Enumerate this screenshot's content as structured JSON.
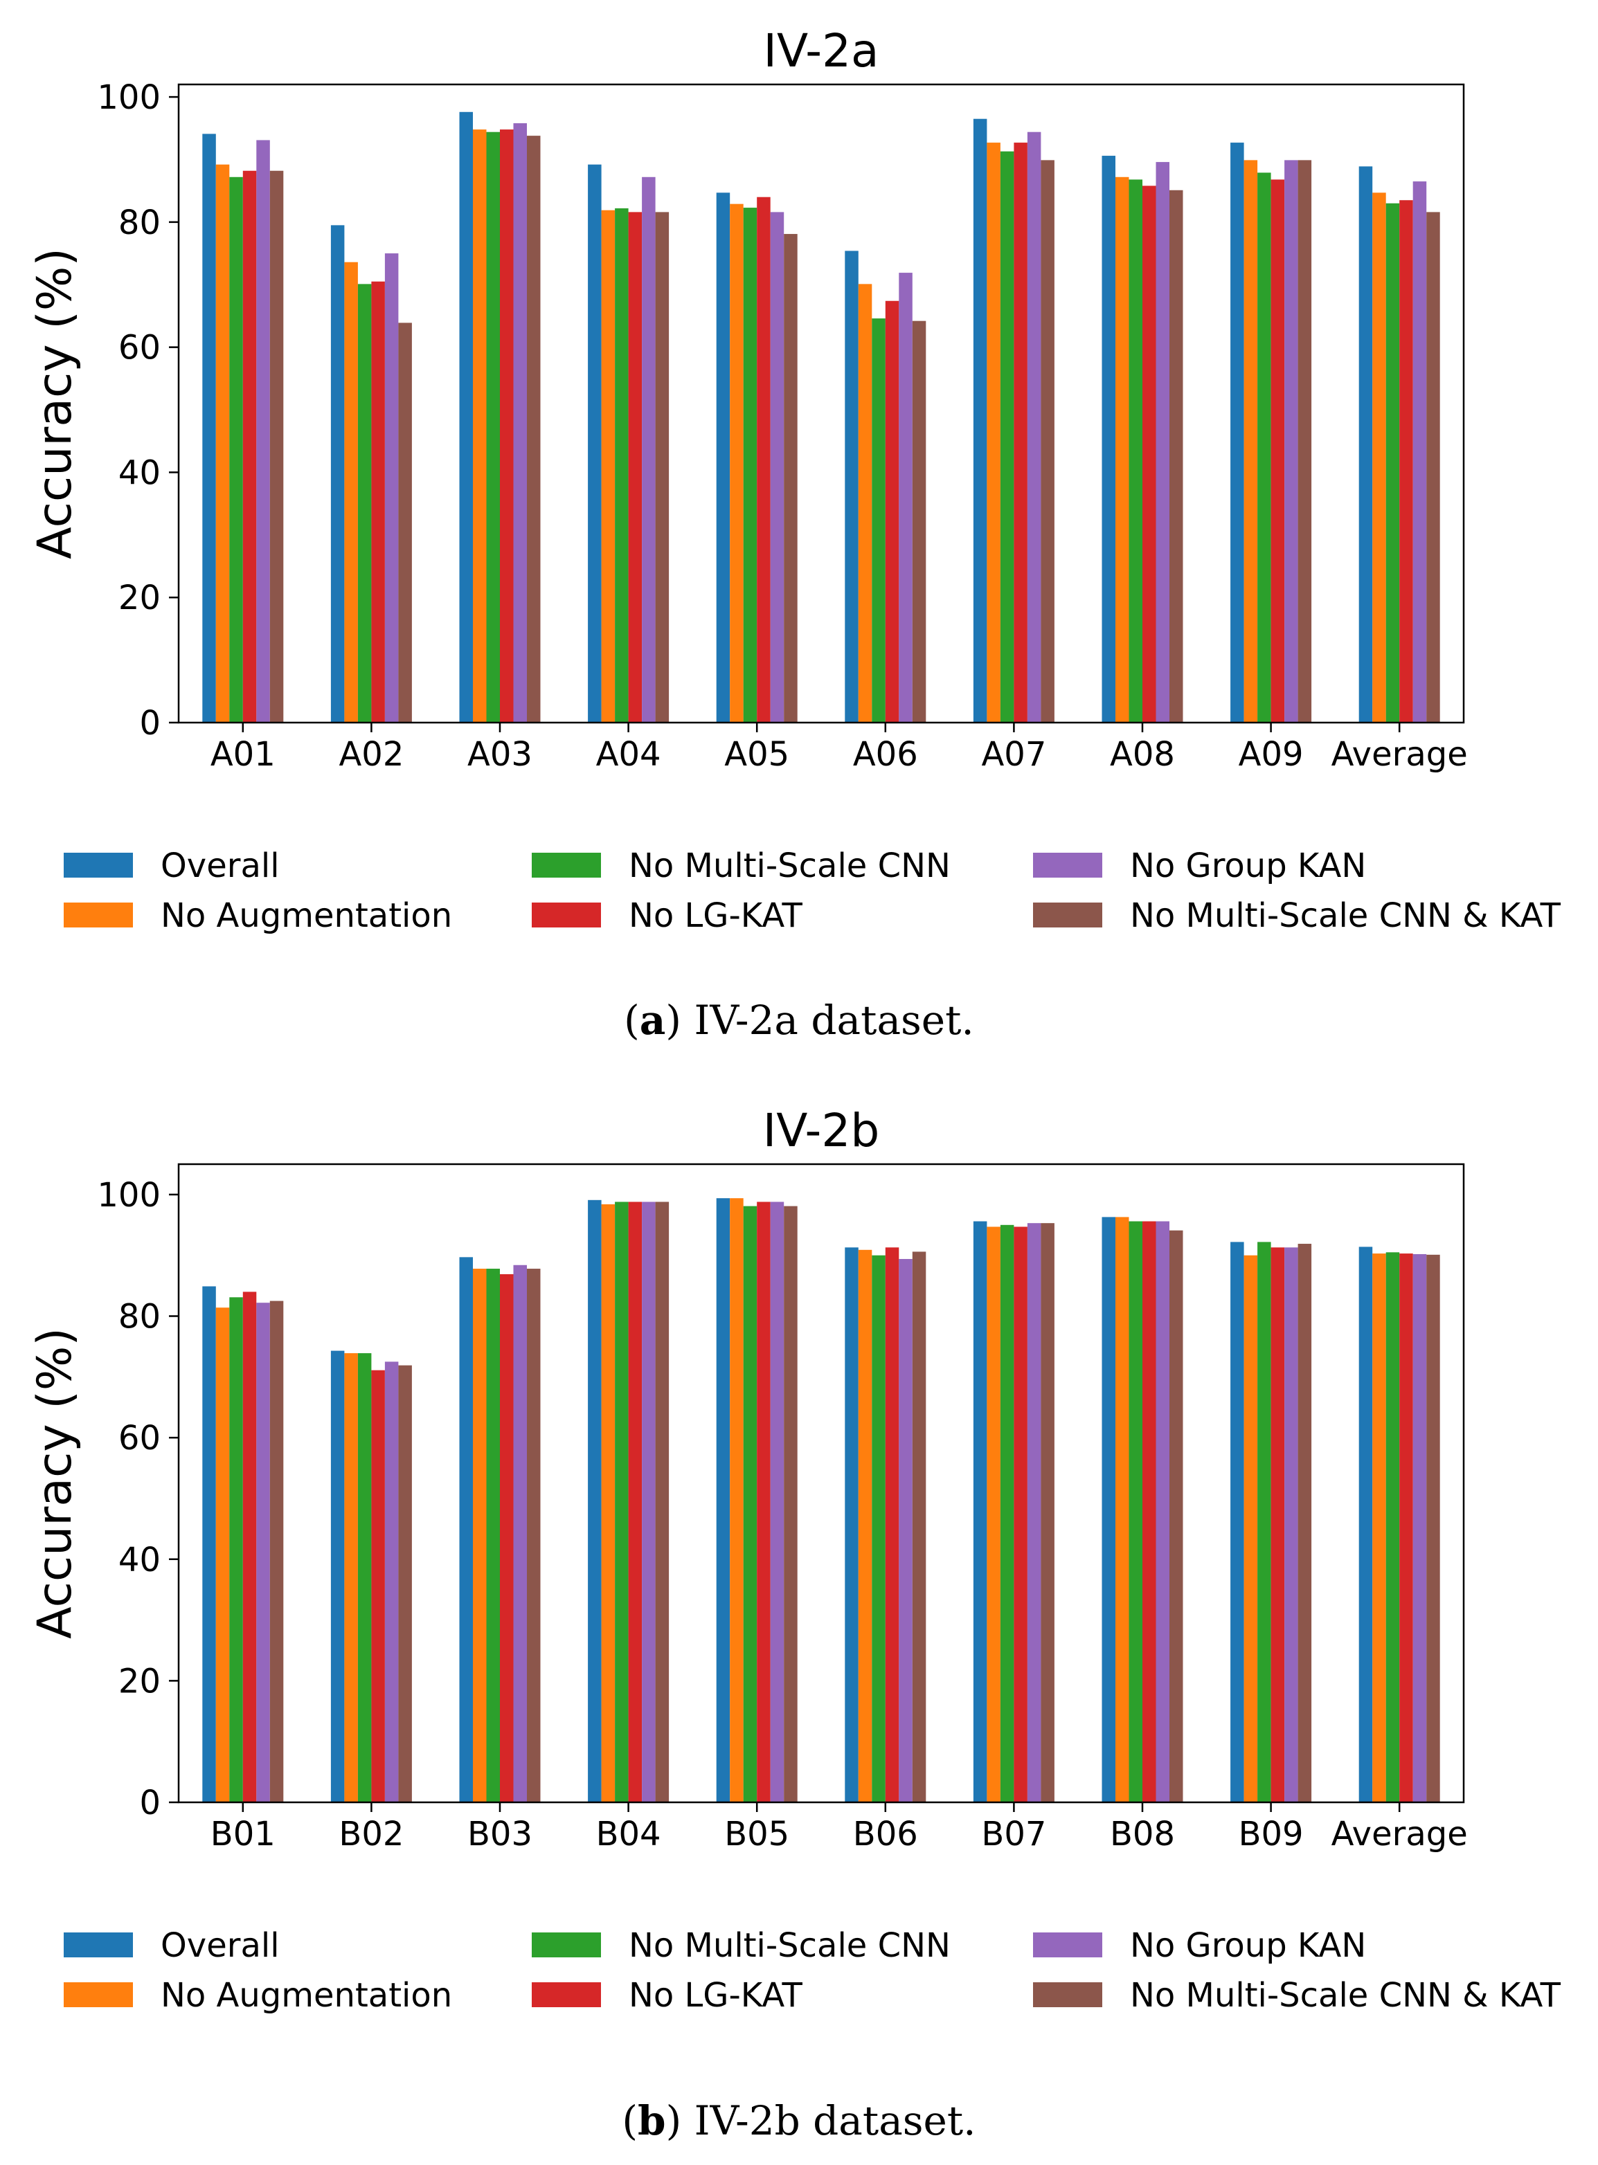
{
  "colors": {
    "Overall": "#1f77b4",
    "No Augmentation": "#ff7f0e",
    "No Multi-Scale CNN": "#2ca02c",
    "No LG-KAT": "#d62728",
    "No Group KAN": "#9467bd",
    "No Multi-Scale CNN & KAT": "#8c564b"
  },
  "legend": {
    "items": [
      "Overall",
      "No Augmentation",
      "No Multi-Scale CNN",
      "No LG-KAT",
      "No Group KAN",
      "No Multi-Scale CNN & KAT"
    ]
  },
  "captions": [
    {
      "letter": "a",
      "text": ") IV-2a dataset.",
      "open": "("
    },
    {
      "letter": "b",
      "text": ") IV-2b dataset.",
      "open": "("
    }
  ],
  "chart_data": [
    {
      "type": "bar",
      "title": "IV-2a",
      "xlabel": "",
      "ylabel": "Accuracy (%)",
      "ylim": [
        0,
        102
      ],
      "yticks": [
        0,
        20,
        40,
        60,
        80,
        100
      ],
      "grid": false,
      "legend_position": "below",
      "categories": [
        "A01",
        "A02",
        "A03",
        "A04",
        "A05",
        "A06",
        "A07",
        "A08",
        "A09",
        "Average"
      ],
      "series": [
        {
          "name": "Overall",
          "values": [
            94.1,
            79.5,
            97.6,
            89.2,
            84.7,
            75.4,
            96.5,
            90.6,
            92.7,
            88.9
          ]
        },
        {
          "name": "No Augmentation",
          "values": [
            89.2,
            73.6,
            94.8,
            81.9,
            82.9,
            70.1,
            92.7,
            87.2,
            89.9,
            84.7
          ]
        },
        {
          "name": "No Multi-Scale CNN",
          "values": [
            87.2,
            70.1,
            94.4,
            82.2,
            82.3,
            64.6,
            91.3,
            86.8,
            87.9,
            83.0
          ]
        },
        {
          "name": "No LG-KAT",
          "values": [
            88.2,
            70.5,
            94.8,
            81.6,
            84.0,
            67.4,
            92.7,
            85.8,
            86.8,
            83.5
          ]
        },
        {
          "name": "No Group KAN",
          "values": [
            93.1,
            75.0,
            95.8,
            87.2,
            81.6,
            71.9,
            94.4,
            89.6,
            89.9,
            86.5
          ]
        },
        {
          "name": "No Multi-Scale CNN & KAT",
          "values": [
            88.2,
            63.9,
            93.8,
            81.6,
            78.1,
            64.2,
            89.9,
            85.1,
            89.9,
            81.6
          ]
        }
      ]
    },
    {
      "type": "bar",
      "title": "IV-2b",
      "xlabel": "",
      "ylabel": "Accuracy (%)",
      "ylim": [
        0,
        105
      ],
      "yticks": [
        0,
        20,
        40,
        60,
        80,
        100
      ],
      "grid": false,
      "legend_position": "below",
      "categories": [
        "B01",
        "B02",
        "B03",
        "B04",
        "B05",
        "B06",
        "B07",
        "B08",
        "B09",
        "Average"
      ],
      "series": [
        {
          "name": "Overall",
          "values": [
            84.9,
            74.3,
            89.7,
            99.1,
            99.4,
            91.3,
            95.6,
            96.3,
            92.2,
            91.4
          ]
        },
        {
          "name": "No Augmentation",
          "values": [
            81.4,
            73.9,
            87.8,
            98.4,
            99.4,
            90.9,
            94.7,
            96.3,
            90.0,
            90.3
          ]
        },
        {
          "name": "No Multi-Scale CNN",
          "values": [
            83.1,
            73.9,
            87.8,
            98.8,
            98.1,
            90.0,
            95.0,
            95.6,
            92.2,
            90.5
          ]
        },
        {
          "name": "No LG-KAT",
          "values": [
            84.0,
            71.1,
            86.9,
            98.8,
            98.8,
            91.3,
            94.7,
            95.6,
            91.3,
            90.3
          ]
        },
        {
          "name": "No Group KAN",
          "values": [
            82.2,
            72.5,
            88.4,
            98.8,
            98.8,
            89.4,
            95.3,
            95.6,
            91.3,
            90.2
          ]
        },
        {
          "name": "No Multi-Scale CNN & KAT",
          "values": [
            82.5,
            71.9,
            87.8,
            98.8,
            98.1,
            90.6,
            95.3,
            94.1,
            91.9,
            90.1
          ]
        }
      ]
    }
  ]
}
